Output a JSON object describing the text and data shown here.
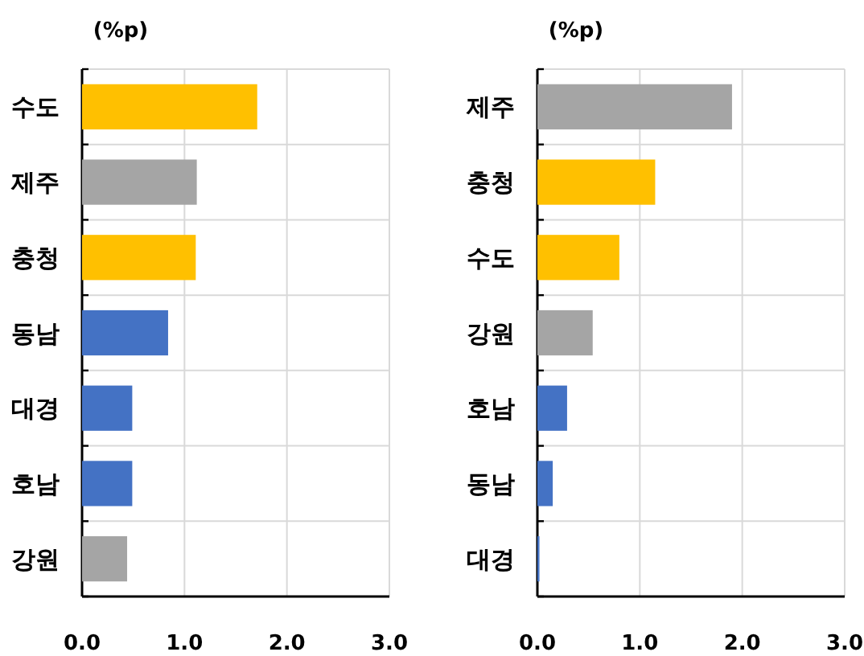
{
  "chart_data": [
    {
      "type": "bar",
      "orientation": "horizontal",
      "xlabel": "(%p)",
      "categories": [
        "수도",
        "제주",
        "충청",
        "동남",
        "대경",
        "호남",
        "강원"
      ],
      "values": [
        1.71,
        1.12,
        1.11,
        0.84,
        0.49,
        0.49,
        0.44
      ],
      "colors": [
        "#ffc000",
        "#a5a5a5",
        "#ffc000",
        "#4472c4",
        "#4472c4",
        "#4472c4",
        "#a5a5a5"
      ],
      "xlim": [
        0,
        3
      ],
      "xticks": [
        {
          "value": 0,
          "label": "0.0"
        },
        {
          "value": 1,
          "label": "1.0"
        },
        {
          "value": 2,
          "label": "2.0"
        },
        {
          "value": 3,
          "label": "3.0"
        }
      ],
      "grid": true
    },
    {
      "type": "bar",
      "orientation": "horizontal",
      "xlabel": "(%p)",
      "categories": [
        "제주",
        "충청",
        "수도",
        "강원",
        "호남",
        "동남",
        "대경"
      ],
      "values": [
        1.9,
        1.15,
        0.8,
        0.54,
        0.29,
        0.15,
        0.02
      ],
      "colors": [
        "#a5a5a5",
        "#ffc000",
        "#ffc000",
        "#a5a5a5",
        "#4472c4",
        "#4472c4",
        "#4472c4"
      ],
      "xlim": [
        0,
        3
      ],
      "xticks": [
        {
          "value": 0,
          "label": "0.0"
        },
        {
          "value": 1,
          "label": "1.0"
        },
        {
          "value": 2,
          "label": "2.0"
        },
        {
          "value": 3,
          "label": "3.0"
        }
      ],
      "grid": true
    }
  ]
}
